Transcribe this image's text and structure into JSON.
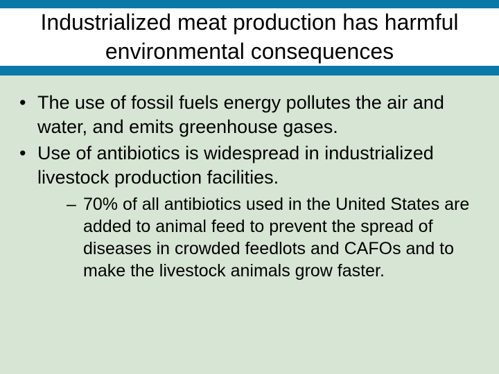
{
  "colors": {
    "header_bg": "#0a79a8",
    "body_bg": "#d7e5d4",
    "title_bg": "#ffffff",
    "text": "#000000"
  },
  "typography": {
    "title_fontsize": 32,
    "bullet_fontsize": 27,
    "subbullet_fontsize": 25,
    "font_family": "Arial"
  },
  "slide": {
    "title": "Industrialized meat production has harmful environmental consequences",
    "bullets": [
      {
        "text": "The use of fossil fuels energy pollutes the air and water, and emits greenhouse gases."
      },
      {
        "text": "Use of antibiotics is widespread in industrialized livestock production facilities.",
        "sub": [
          "70% of all antibiotics used in the United States are added to animal feed to prevent the spread of diseases in crowded feedlots and CAFOs and to make the livestock animals grow faster."
        ]
      }
    ]
  }
}
